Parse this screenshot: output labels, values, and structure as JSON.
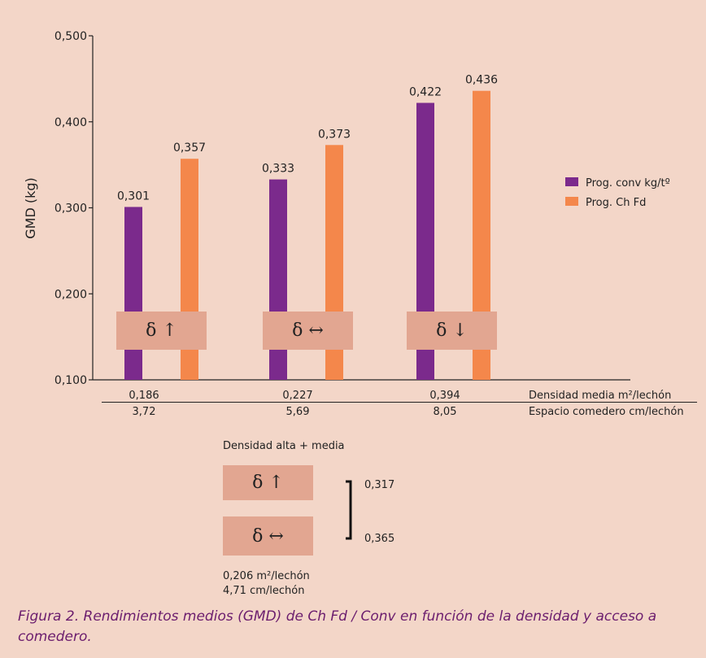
{
  "chart_data": {
    "type": "bar",
    "ylabel": "GMD (kg)",
    "ylim": [
      0.1,
      0.5
    ],
    "yticks": [
      "0,100",
      "0,200",
      "0,300",
      "0,400",
      "0,500"
    ],
    "ytick_values": [
      0.1,
      0.2,
      0.3,
      0.4,
      0.5
    ],
    "categories": [
      "δ ↑",
      "δ ↔",
      "δ ↓"
    ],
    "series": [
      {
        "name": "Prog. conv kg/tº",
        "color": "#7b2a8c",
        "values": [
          0.301,
          0.333,
          0.422
        ],
        "labels": [
          "0,301",
          "0,333",
          "0,422"
        ]
      },
      {
        "name": "Prog. Ch Fd",
        "color": "#f4874b",
        "values": [
          0.357,
          0.373,
          0.436
        ],
        "labels": [
          "0,357",
          "0,373",
          "0,436"
        ]
      }
    ],
    "legend_position": "right"
  },
  "table": {
    "row1": {
      "values": [
        "0,186",
        "0,227",
        "0,394"
      ],
      "label": "Densidad media m²/lechón"
    },
    "row2": {
      "values": [
        "3,72",
        "5,69",
        "8,05"
      ],
      "label": "Espacio comedero cm/lechón"
    }
  },
  "subfigure": {
    "title": "Densidad alta + media",
    "boxes": [
      "δ ↑",
      "δ ↔"
    ],
    "values": [
      "0,317",
      "0,365"
    ],
    "density": "0,206 m²/lechón",
    "space": "4,71 cm/lechón"
  },
  "caption": "Figura 2. Rendimientos medios (GMD) de Ch Fd / Conv en función de la densidad y acceso a comedero."
}
